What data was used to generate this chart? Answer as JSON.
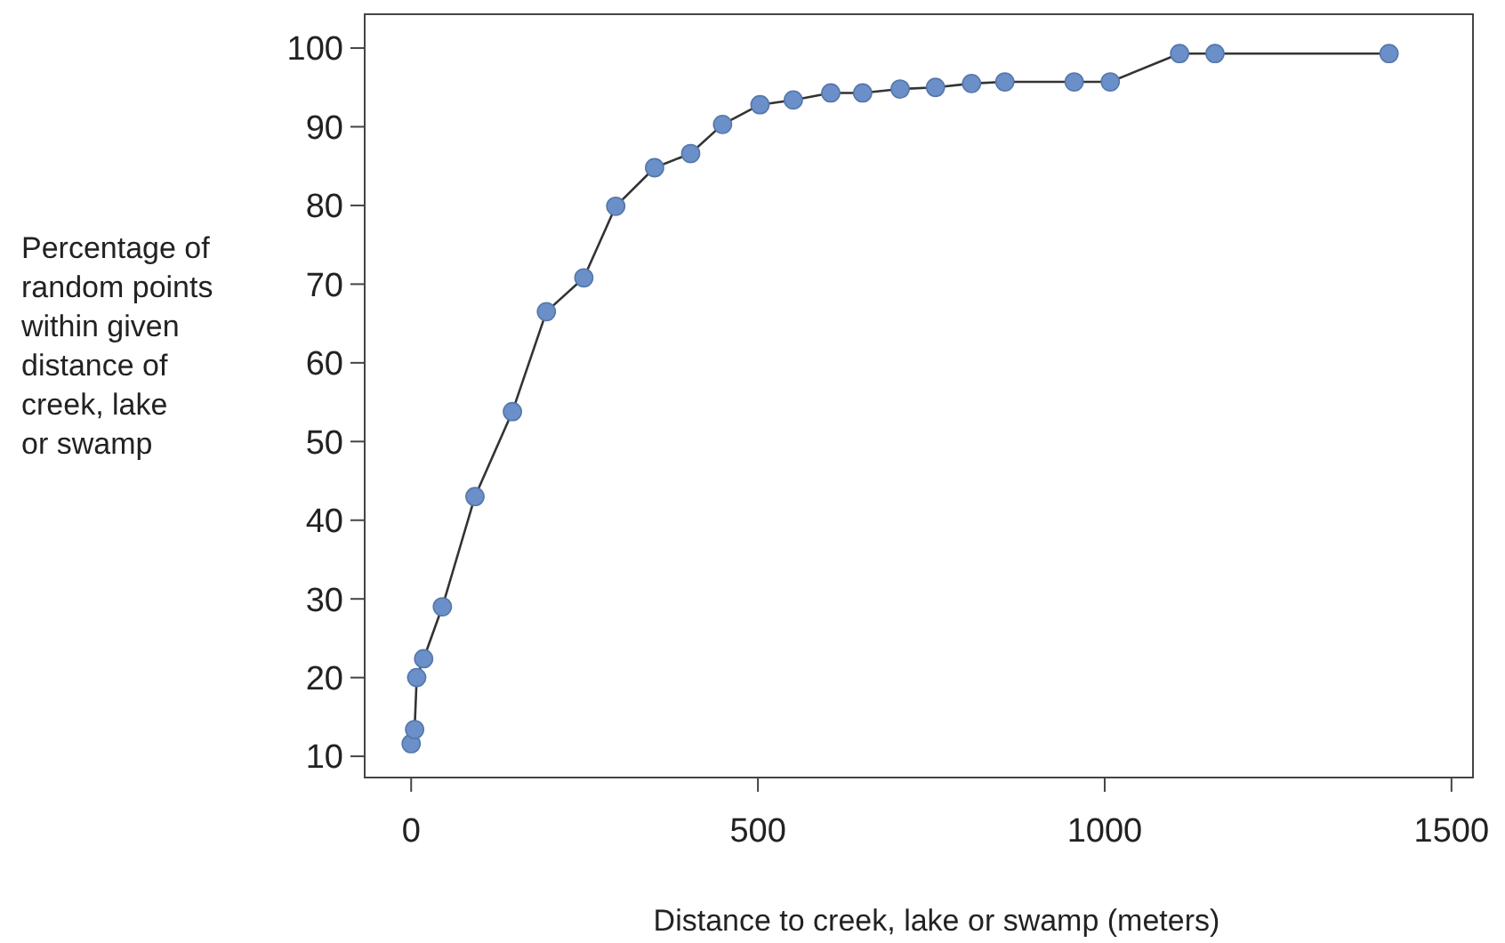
{
  "chart_data": {
    "type": "line",
    "xlabel": "Distance to creek, lake or swamp (meters)",
    "ylabel": "Percentage of random points within given distance of creek, lake or swamp",
    "marker": "circle",
    "grid": false,
    "xlim": [
      -67,
      1531
    ],
    "xticks": [
      0,
      500,
      1000,
      1500
    ],
    "ylim": [
      7.3,
      104.3
    ],
    "yticks": [
      10,
      20,
      30,
      40,
      50,
      60,
      70,
      80,
      90,
      100
    ],
    "series": [
      {
        "color": "#6b8fc9",
        "x": [
          0,
          5,
          8,
          18,
          45,
          92,
          146,
          195,
          249,
          295,
          351,
          403,
          449,
          503,
          551,
          605,
          651,
          705,
          756,
          808,
          856,
          956,
          1008,
          1108,
          1159,
          1410
        ],
        "values": [
          11.6,
          13.4,
          20,
          22.4,
          29,
          43,
          53.8,
          66.5,
          70.8,
          79.9,
          84.8,
          86.6,
          90.3,
          92.8,
          93.4,
          94.3,
          94.3,
          94.8,
          95,
          95.5,
          95.7,
          95.7,
          95.7,
          99.3,
          99.3,
          99.3
        ]
      }
    ]
  }
}
